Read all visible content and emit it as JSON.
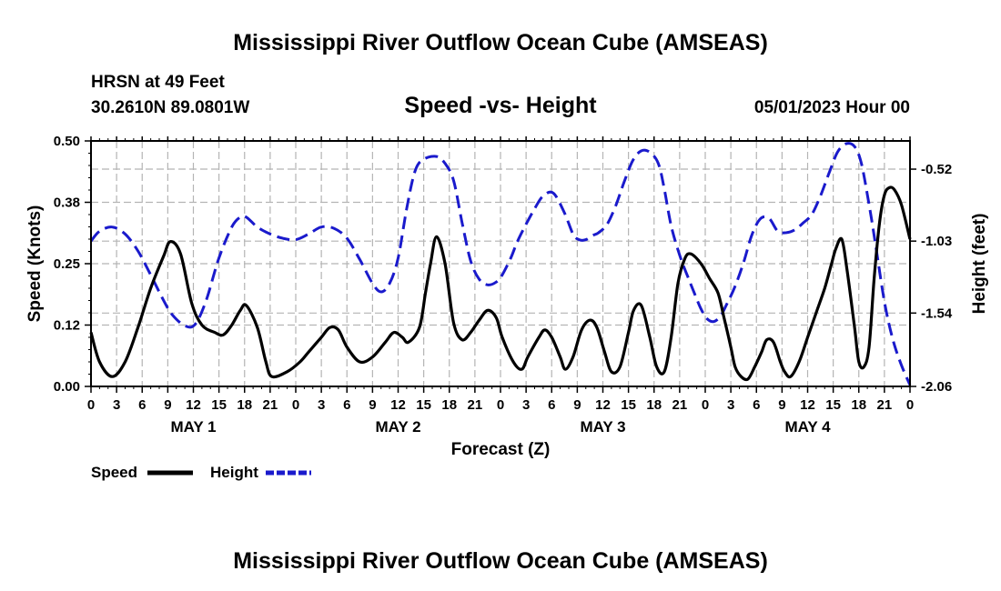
{
  "page": {
    "title": "Mississippi River Outflow Ocean Cube (AMSEAS)",
    "footer_title": "Mississippi River Outflow Ocean Cube (AMSEAS)",
    "station": "HRSN at 49 Feet",
    "coords": "30.2610N  89.0801W",
    "subtitle": "Speed -vs- Height",
    "datetime": "05/01/2023 Hour 00"
  },
  "chart_data": {
    "type": "line",
    "title": "Speed -vs- Height",
    "xlabel": "Forecast (Z)",
    "ylabel": "Speed (Knots)",
    "y2label": "Height (feet)",
    "xlim": [
      0,
      96
    ],
    "ylim": [
      0,
      0.5
    ],
    "y2lim": [
      -2.06,
      -0.32
    ],
    "grid": true,
    "x_ticks": [
      0,
      3,
      6,
      9,
      12,
      15,
      18,
      21,
      24,
      27,
      30,
      33,
      36,
      39,
      42,
      45,
      48,
      51,
      54,
      57,
      60,
      63,
      66,
      69,
      72,
      75,
      78,
      81,
      84,
      87,
      90,
      93,
      96
    ],
    "x_tick_labels": [
      "0",
      "3",
      "6",
      "9",
      "12",
      "15",
      "18",
      "21",
      "0",
      "3",
      "6",
      "9",
      "12",
      "15",
      "18",
      "21",
      "0",
      "3",
      "6",
      "9",
      "12",
      "15",
      "18",
      "21",
      "0",
      "3",
      "6",
      "9",
      "12",
      "15",
      "18",
      "21",
      "0"
    ],
    "y_ticks": [
      "0.00",
      "0.12",
      "0.25",
      "0.38",
      "0.50"
    ],
    "y_tick_values": [
      0,
      0.125,
      0.25,
      0.375,
      0.5
    ],
    "y2_ticks": [
      "-0.52",
      "-1.03",
      "-1.54",
      "-2.06"
    ],
    "y2_tick_values": [
      -0.52,
      -1.03,
      -1.54,
      -2.06
    ],
    "day_labels": [
      {
        "label": "MAY 1",
        "x": 12
      },
      {
        "label": "MAY 2",
        "x": 36
      },
      {
        "label": "MAY 3",
        "x": 60
      },
      {
        "label": "MAY 4",
        "x": 84
      }
    ],
    "legend": [
      {
        "name": "Speed",
        "color": "#000000",
        "dash": false
      },
      {
        "name": "Height",
        "color": "#1a1acc",
        "dash": true
      }
    ],
    "series": [
      {
        "name": "Speed",
        "axis": "left",
        "color": "#000000",
        "x": [
          0,
          1,
          2.5,
          4,
          5.5,
          7,
          8.5,
          9.3,
          10.5,
          11.8,
          13,
          14.5,
          15.5,
          16.5,
          17.5,
          18.2,
          19.5,
          20.5,
          21.2,
          23,
          24.5,
          25.5,
          27,
          28,
          29,
          30,
          31.5,
          33,
          34.5,
          35.5,
          36.5,
          37.2,
          38.5,
          39.2,
          39.8,
          40.5,
          41.5,
          42.5,
          43.5,
          44.5,
          45.5,
          46.5,
          47.5,
          48.2,
          49.5,
          50.5,
          51.2,
          52.5,
          53.2,
          54,
          55,
          55.6,
          56.5,
          57.5,
          58.5,
          59.3,
          60.2,
          61,
          62,
          63,
          63.6,
          64.5,
          65.5,
          66.3,
          67.2,
          68,
          68.8,
          69.6,
          70.3,
          71.5,
          72.5,
          73.5,
          74.2,
          75,
          75.5,
          76.2,
          77,
          77.8,
          78.6,
          79.2,
          80,
          80.8,
          81.3,
          82,
          83,
          84,
          85,
          86,
          86.8,
          87.3,
          88,
          88.6,
          89.5,
          90,
          90.6,
          91.2,
          91.8,
          92.4,
          93,
          93.6,
          94.2,
          95,
          96
        ],
        "y": [
          0.11,
          0.05,
          0.02,
          0.05,
          0.12,
          0.2,
          0.265,
          0.295,
          0.27,
          0.17,
          0.125,
          0.11,
          0.105,
          0.125,
          0.155,
          0.165,
          0.12,
          0.05,
          0.02,
          0.03,
          0.05,
          0.07,
          0.1,
          0.12,
          0.115,
          0.08,
          0.05,
          0.06,
          0.09,
          0.11,
          0.1,
          0.09,
          0.12,
          0.19,
          0.25,
          0.305,
          0.25,
          0.13,
          0.095,
          0.11,
          0.135,
          0.155,
          0.14,
          0.1,
          0.05,
          0.035,
          0.06,
          0.1,
          0.115,
          0.1,
          0.06,
          0.035,
          0.06,
          0.115,
          0.135,
          0.12,
          0.07,
          0.03,
          0.04,
          0.11,
          0.155,
          0.165,
          0.1,
          0.04,
          0.03,
          0.1,
          0.21,
          0.26,
          0.27,
          0.25,
          0.22,
          0.19,
          0.14,
          0.08,
          0.04,
          0.02,
          0.015,
          0.04,
          0.07,
          0.095,
          0.09,
          0.05,
          0.03,
          0.02,
          0.05,
          0.1,
          0.15,
          0.2,
          0.25,
          0.28,
          0.3,
          0.24,
          0.12,
          0.05,
          0.04,
          0.08,
          0.22,
          0.33,
          0.39,
          0.405,
          0.4,
          0.37,
          0.3
        ]
      },
      {
        "name": "Height",
        "axis": "right",
        "color": "#1a1acc",
        "x": [
          0,
          1,
          2.5,
          4,
          5.5,
          7,
          8.5,
          9.5,
          11,
          12.2,
          13.5,
          15,
          16.5,
          17.5,
          18.2,
          19.5,
          21,
          22.5,
          24,
          25.5,
          27,
          28.5,
          30,
          31.5,
          33,
          34,
          35,
          36,
          37,
          38,
          39,
          40.5,
          41.5,
          42.5,
          43.5,
          44.5,
          45.5,
          46.5,
          47.5,
          48.2,
          49.2,
          50,
          51,
          52,
          53,
          54.2,
          55.5,
          56.5,
          57.2,
          58,
          58.8,
          59.5,
          60.5,
          61.5,
          62.5,
          63.5,
          64.5,
          65.5,
          66.5,
          67.2,
          68,
          69,
          70,
          70.8,
          71.5,
          72.2,
          73,
          73.8,
          74.5,
          75.5,
          76.5,
          77.5,
          78.5,
          79.5,
          80.5,
          81.5,
          82.5,
          83.5,
          84.5,
          85.5,
          86.5,
          87.5,
          88.5,
          89.5,
          90.3,
          91.2,
          92,
          93,
          94,
          95,
          96
        ],
        "y": [
          -1.03,
          -0.96,
          -0.93,
          -0.98,
          -1.1,
          -1.27,
          -1.45,
          -1.55,
          -1.63,
          -1.62,
          -1.45,
          -1.15,
          -0.93,
          -0.86,
          -0.86,
          -0.93,
          -0.98,
          -1.01,
          -1.02,
          -0.98,
          -0.93,
          -0.94,
          -1.01,
          -1.16,
          -1.33,
          -1.39,
          -1.33,
          -1.15,
          -0.8,
          -0.53,
          -0.45,
          -0.43,
          -0.48,
          -0.6,
          -0.9,
          -1.17,
          -1.3,
          -1.34,
          -1.32,
          -1.27,
          -1.15,
          -1.03,
          -0.91,
          -0.8,
          -0.71,
          -0.69,
          -0.83,
          -0.98,
          -1.02,
          -1.02,
          -0.99,
          -0.97,
          -0.91,
          -0.78,
          -0.61,
          -0.46,
          -0.39,
          -0.4,
          -0.48,
          -0.66,
          -0.92,
          -1.13,
          -1.29,
          -1.41,
          -1.51,
          -1.58,
          -1.6,
          -1.56,
          -1.48,
          -1.35,
          -1.18,
          -0.98,
          -0.87,
          -0.87,
          -0.96,
          -0.97,
          -0.95,
          -0.9,
          -0.84,
          -0.71,
          -0.55,
          -0.4,
          -0.34,
          -0.36,
          -0.48,
          -0.77,
          -1.07,
          -1.46,
          -1.73,
          -1.91,
          -2.05
        ]
      }
    ]
  }
}
